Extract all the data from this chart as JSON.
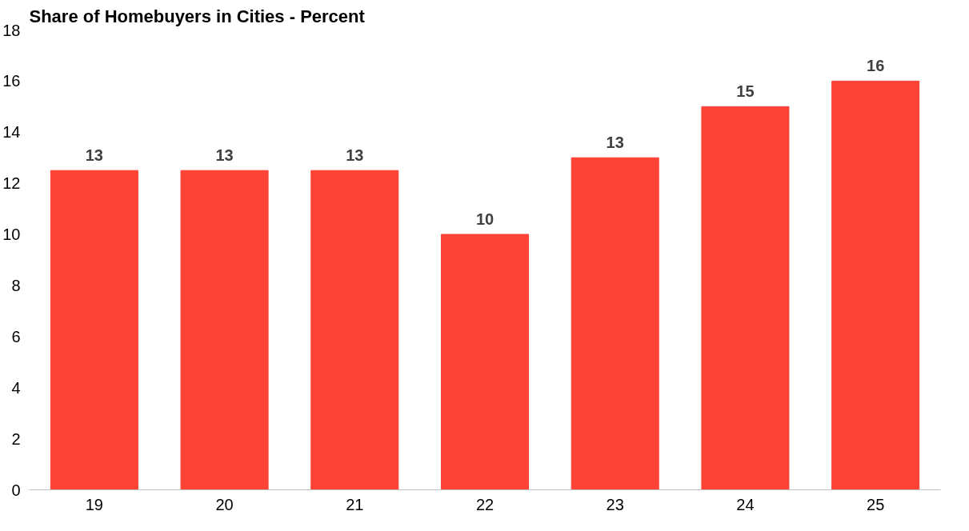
{
  "chart_data": {
    "type": "bar",
    "title": "Share of Homebuyers in Cities - Percent",
    "categories": [
      "19",
      "20",
      "21",
      "22",
      "23",
      "24",
      "25"
    ],
    "values": [
      12.5,
      12.5,
      12.5,
      10,
      13,
      15,
      16
    ],
    "value_labels": [
      "13",
      "13",
      "13",
      "10",
      "13",
      "15",
      "16"
    ],
    "color": "#fd4236",
    "ylim": [
      0,
      18
    ],
    "yticks": [
      0,
      2,
      4,
      6,
      8,
      10,
      12,
      14,
      16,
      18
    ],
    "grid": false
  }
}
